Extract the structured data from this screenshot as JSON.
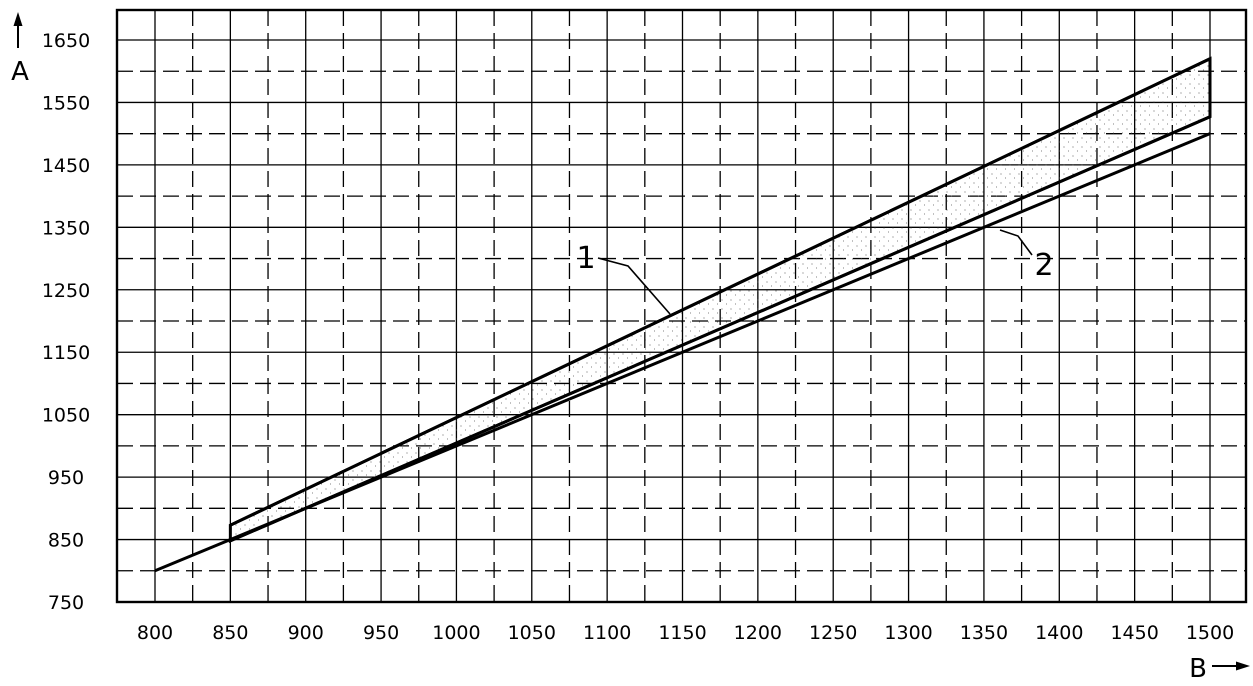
{
  "chart_data": {
    "type": "area",
    "xlabel": "B",
    "ylabel": "A",
    "xlim": [
      800,
      1500
    ],
    "ylim": [
      750,
      1680
    ],
    "x_ticks": [
      800,
      850,
      900,
      950,
      1000,
      1050,
      1100,
      1150,
      1200,
      1250,
      1300,
      1350,
      1400,
      1450,
      1500
    ],
    "x_tick_labels": [
      "800",
      "850",
      "900",
      "950",
      "1000",
      "1050",
      "1100",
      "1150",
      "1200",
      "1250",
      "1300",
      "1350",
      "1400",
      "1450",
      "1500"
    ],
    "y_ticks": [
      750,
      850,
      950,
      1050,
      1150,
      1250,
      1350,
      1450,
      1550,
      1650
    ],
    "y_tick_labels": [
      "750",
      "850",
      "950",
      "1050",
      "1150",
      "1250",
      "1350",
      "1450",
      "1550",
      "1650"
    ],
    "grid": true,
    "series": [
      {
        "name": "1",
        "kind": "band-upper",
        "x": [
          850,
          1500
        ],
        "y": [
          873,
          1620
        ]
      },
      {
        "name": "",
        "kind": "band-lower",
        "x": [
          850,
          1500
        ],
        "y": [
          848,
          1527
        ]
      },
      {
        "name": "2",
        "kind": "line",
        "x": [
          800,
          1500
        ],
        "y": [
          800,
          1500
        ]
      }
    ]
  }
}
